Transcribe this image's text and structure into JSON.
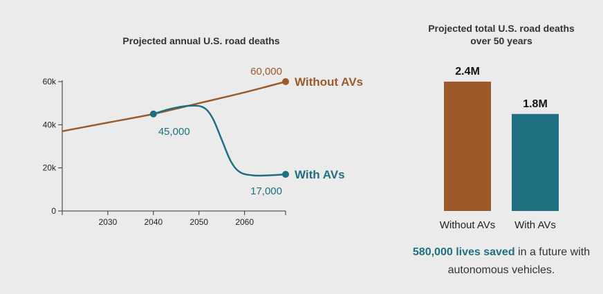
{
  "chart_data": [
    {
      "type": "line",
      "title": "Projected annual U.S. road deaths",
      "xlim": [
        2020,
        2069
      ],
      "ylim": [
        0,
        60000
      ],
      "xticks": [
        2030,
        2040,
        2050,
        2060
      ],
      "yticks": [
        0,
        20000,
        40000,
        60000
      ],
      "ytick_labels": [
        "0",
        "20k",
        "40k",
        "60k"
      ],
      "series": [
        {
          "name": "Without AVs",
          "color": "#9c5a2b",
          "x": [
            2020,
            2030,
            2040,
            2050,
            2060,
            2069
          ],
          "y": [
            37000,
            41000,
            45000,
            50000,
            55000,
            60000
          ],
          "end_label": "60,000"
        },
        {
          "name": "With AVs",
          "color": "#1e7080",
          "x": [
            2040,
            2044,
            2048,
            2051,
            2053,
            2055,
            2057,
            2059,
            2062,
            2066,
            2069
          ],
          "y": [
            45000,
            47500,
            48800,
            48000,
            43000,
            33000,
            23000,
            18000,
            16500,
            16600,
            17000
          ],
          "start_label": "45,000",
          "end_label": "17,000"
        }
      ]
    },
    {
      "type": "bar",
      "title_lines": [
        "Projected total U.S. road deaths",
        "over 50 years"
      ],
      "categories": [
        "Without AVs",
        "With AVs"
      ],
      "values": [
        2.4,
        1.8
      ],
      "value_labels": [
        "2.4M",
        "1.8M"
      ],
      "units": "millions",
      "ylim": [
        0,
        2.4
      ],
      "colors": [
        "#9c5a2b",
        "#1e7080"
      ]
    }
  ],
  "summary": {
    "highlight": "580,000 lives saved",
    "rest": " in a future with autonomous vehicles."
  }
}
